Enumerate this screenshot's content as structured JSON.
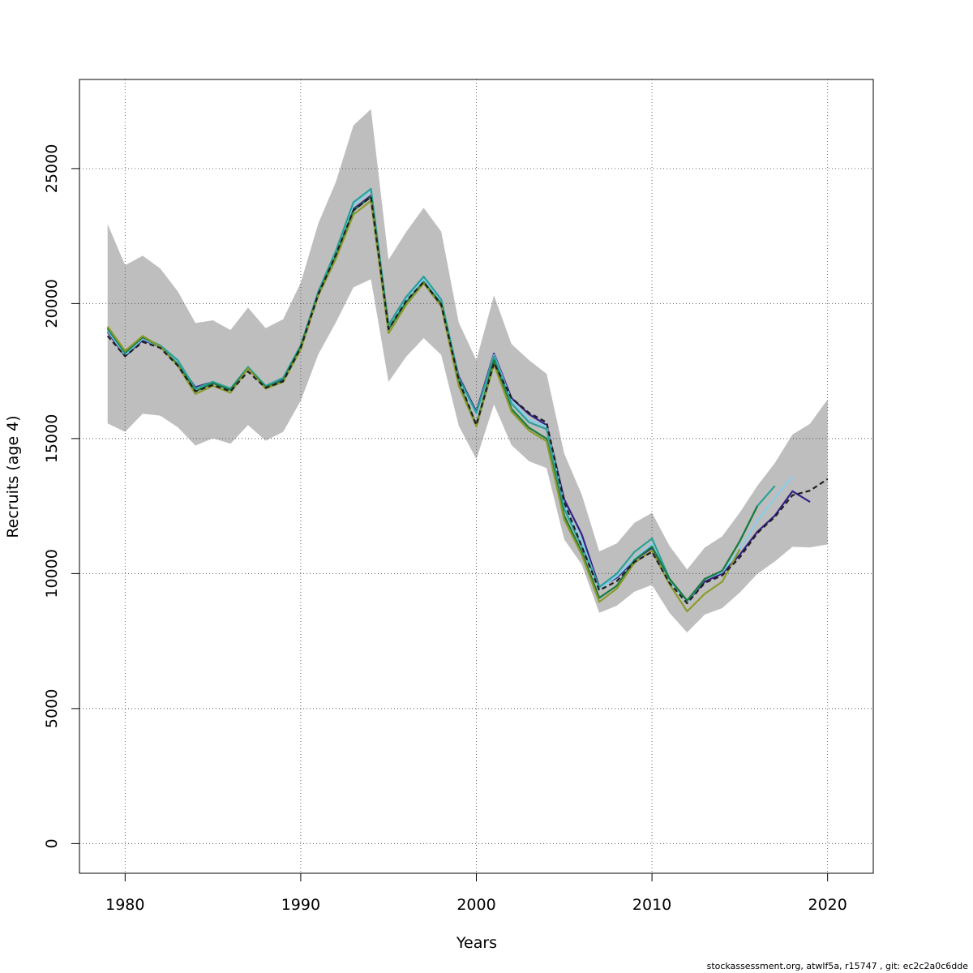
{
  "chart_data": {
    "type": "line",
    "xlabel": "Years",
    "ylabel": "Recruits (age 4)",
    "xlim": [
      1977.4,
      2022.6
    ],
    "ylim": [
      -1100,
      28300
    ],
    "xticks": [
      1980,
      1990,
      2000,
      2010,
      2020
    ],
    "yticks": [
      0,
      5000,
      10000,
      15000,
      20000,
      25000
    ],
    "grid": true,
    "band": {
      "x": [
        1979,
        1980,
        1981,
        1982,
        1983,
        1984,
        1985,
        1986,
        1987,
        1988,
        1989,
        1990,
        1991,
        1992,
        1993,
        1994,
        1995,
        1996,
        1997,
        1998,
        1999,
        2000,
        2001,
        2002,
        2003,
        2004,
        2005,
        2006,
        2007,
        2008,
        2009,
        2010,
        2011,
        2012,
        2013,
        2014,
        2015,
        2016,
        2017,
        2018,
        2019,
        2020
      ],
      "upper": [
        22950,
        21420,
        21770,
        21300,
        20450,
        19280,
        19380,
        19020,
        19850,
        19090,
        19420,
        20770,
        22970,
        24500,
        26600,
        27200,
        21620,
        22650,
        23550,
        22660,
        19300,
        17900,
        20300,
        18500,
        17900,
        17400,
        14450,
        12920,
        10820,
        11120,
        11880,
        12250,
        11020,
        10150,
        10960,
        11380,
        12260,
        13250,
        14100,
        15150,
        15550,
        16450
      ],
      "lower": [
        15560,
        15250,
        15920,
        15850,
        15420,
        14740,
        15010,
        14810,
        15500,
        14920,
        15250,
        16400,
        18120,
        19300,
        20600,
        20900,
        17100,
        18030,
        18720,
        18100,
        15470,
        14240,
        16260,
        14760,
        14160,
        13910,
        11270,
        10330,
        8550,
        8810,
        9330,
        9580,
        8540,
        7820,
        8480,
        8720,
        9300,
        9990,
        10450,
        10990,
        10970,
        11080
      ]
    },
    "series": [
      {
        "color": "#1f1f1f",
        "dashed": true,
        "x": [
          1979,
          1980,
          1981,
          1982,
          1983,
          1984,
          1985,
          1986,
          1987,
          1988,
          1989,
          1990,
          1991,
          1992,
          1993,
          1994,
          1995,
          1996,
          1997,
          1998,
          1999,
          2000,
          2001,
          2002,
          2003,
          2004,
          2005,
          2006,
          2007,
          2008,
          2009,
          2010,
          2011,
          2012,
          2013,
          2014,
          2015,
          2016,
          2017,
          2018,
          2019,
          2020
        ],
        "y": [
          18800,
          18050,
          18580,
          18360,
          17700,
          16750,
          16980,
          16750,
          17480,
          16880,
          17120,
          18370,
          20350,
          21800,
          23450,
          23950,
          19050,
          20100,
          20800,
          19950,
          17170,
          15500,
          17800,
          16500,
          15950,
          15600,
          12650,
          11000,
          9380,
          9720,
          10430,
          10800,
          9650,
          8900,
          9650,
          9930,
          10600,
          11500,
          12100,
          12900,
          13070,
          13500
        ]
      },
      {
        "color": "#35218a",
        "dashed": false,
        "x": [
          1979,
          1980,
          1981,
          1982,
          1983,
          1984,
          1985,
          1986,
          1987,
          1988,
          1989,
          1990,
          1991,
          1992,
          1993,
          1994,
          1995,
          1996,
          1997,
          1998,
          1999,
          2000,
          2001,
          2002,
          2003,
          2004,
          2005,
          2006,
          2007,
          2008,
          2009,
          2010,
          2011,
          2012,
          2013,
          2014,
          2015,
          2016,
          2017,
          2018,
          2019
        ],
        "y": [
          18950,
          18050,
          18650,
          18400,
          17800,
          16900,
          17100,
          16850,
          17600,
          16950,
          17200,
          18400,
          20400,
          21800,
          23500,
          24000,
          19200,
          20250,
          20900,
          20000,
          17300,
          16000,
          18150,
          16500,
          15900,
          15500,
          12750,
          11450,
          9500,
          9850,
          10500,
          10950,
          9800,
          8950,
          9700,
          10000,
          10700,
          11550,
          12150,
          13050,
          12650
        ]
      },
      {
        "color": "#87ceeb",
        "dashed": false,
        "x": [
          1979,
          1980,
          1981,
          1982,
          1983,
          1984,
          1985,
          1986,
          1987,
          1988,
          1989,
          1990,
          1991,
          1992,
          1993,
          1994,
          1995,
          1996,
          1997,
          1998,
          1999,
          2000,
          2001,
          2002,
          2003,
          2004,
          2005,
          2006,
          2007,
          2008,
          2009,
          2010,
          2011,
          2012,
          2013,
          2014,
          2015,
          2016,
          2017,
          2018
        ],
        "y": [
          19000,
          18100,
          18700,
          18400,
          17850,
          16850,
          17100,
          16850,
          17650,
          16950,
          17250,
          18450,
          20400,
          21900,
          23650,
          24200,
          19100,
          20150,
          20900,
          20100,
          17200,
          15900,
          18100,
          16400,
          15700,
          15450,
          12550,
          11200,
          9450,
          9900,
          10550,
          11100,
          9700,
          8950,
          9800,
          10050,
          10900,
          11950,
          12800,
          13600
        ]
      },
      {
        "color": "#2aa198",
        "dashed": false,
        "x": [
          1979,
          1980,
          1981,
          1982,
          1983,
          1984,
          1985,
          1986,
          1987,
          1988,
          1989,
          1990,
          1991,
          1992,
          1993,
          1994,
          1995,
          1996,
          1997,
          1998,
          1999,
          2000,
          2001,
          2002,
          2003,
          2004,
          2005,
          2006,
          2007,
          2008,
          2009,
          2010,
          2011,
          2012,
          2013,
          2014,
          2015,
          2016,
          2017
        ],
        "y": [
          19050,
          18150,
          18750,
          18450,
          17900,
          16850,
          17100,
          16850,
          17650,
          16950,
          17250,
          18450,
          20450,
          21950,
          23750,
          24250,
          19200,
          20250,
          21000,
          20150,
          17250,
          15950,
          18050,
          16300,
          15600,
          15350,
          12400,
          11000,
          9500,
          10000,
          10800,
          11300,
          9800,
          9000,
          9800,
          10100,
          11200,
          12500,
          13250
        ]
      },
      {
        "color": "#1b7a3e",
        "dashed": false,
        "x": [
          1979,
          1980,
          1981,
          1982,
          1983,
          1984,
          1985,
          1986,
          1987,
          1988,
          1989,
          1990,
          1991,
          1992,
          1993,
          1994,
          1995,
          1996,
          1997,
          1998,
          1999,
          2000,
          2001,
          2002,
          2003,
          2004,
          2005,
          2006,
          2007,
          2008,
          2009,
          2010,
          2011,
          2012,
          2013,
          2014,
          2015,
          2016
        ],
        "y": [
          19100,
          18200,
          18750,
          18400,
          17750,
          16750,
          17050,
          16800,
          17600,
          16900,
          17150,
          18400,
          20350,
          21750,
          23450,
          23950,
          19050,
          20050,
          20800,
          19980,
          17050,
          15500,
          17900,
          16100,
          15400,
          15000,
          12150,
          10800,
          9100,
          9550,
          10500,
          11000,
          9800,
          9000,
          9800,
          10100,
          11200,
          12500
        ]
      },
      {
        "color": "#8b9a2b",
        "dashed": false,
        "x": [
          1979,
          1980,
          1981,
          1982,
          1983,
          1984,
          1985,
          1986,
          1987,
          1988,
          1989,
          1990,
          1991,
          1992,
          1993,
          1994,
          1995,
          1996,
          1997,
          1998,
          1999,
          2000,
          2001,
          2002,
          2003,
          2004,
          2005,
          2006,
          2007,
          2008,
          2009,
          2010,
          2011,
          2012,
          2013,
          2014,
          2015
        ],
        "y": [
          19150,
          18250,
          18800,
          18400,
          17700,
          16650,
          16950,
          16700,
          17600,
          16850,
          17100,
          18300,
          20300,
          21650,
          23300,
          23800,
          18900,
          19950,
          20750,
          19900,
          16950,
          15450,
          17750,
          16000,
          15300,
          14900,
          12000,
          10700,
          8950,
          9450,
          10400,
          10850,
          9600,
          8600,
          9250,
          9700,
          10900
        ]
      }
    ]
  },
  "footer_note": "stockassessment.org, atwlf5a, r15747 , git: ec2c2a0c6dde"
}
